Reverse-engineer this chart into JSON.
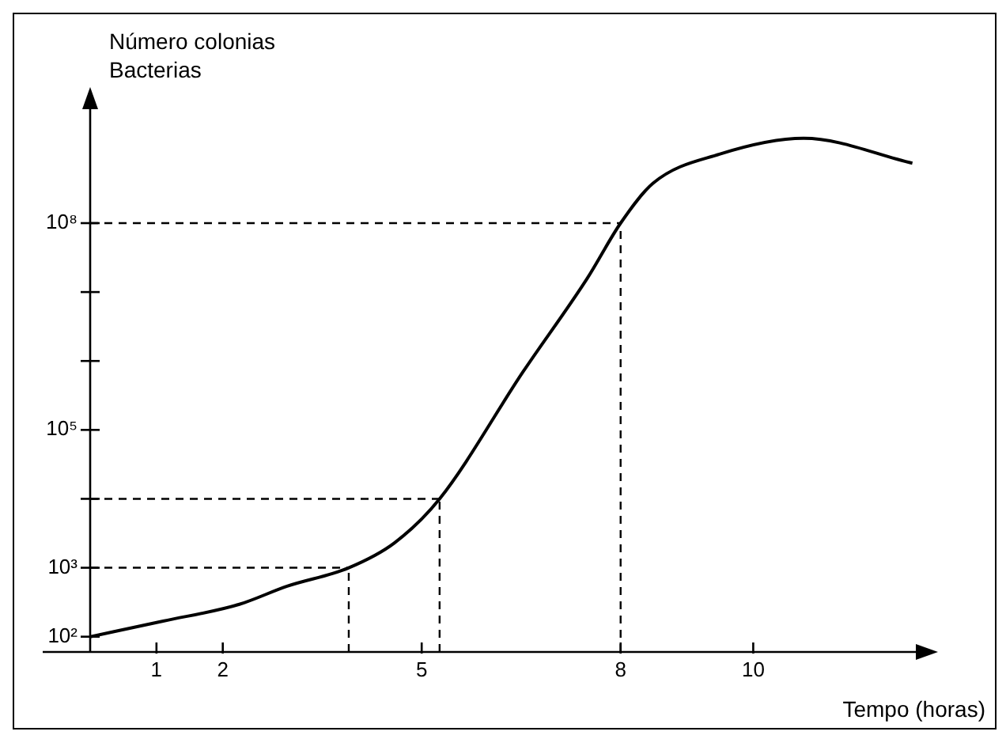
{
  "chart_data": {
    "type": "line",
    "xlabel": "Tempo (horas)",
    "ylabel": "Número colonias Bacterias",
    "log": "y",
    "x": [
      0,
      1.1,
      2.25,
      2.97,
      3.9,
      4.59,
      5.27,
      6.53,
      7.5,
      8,
      8.49,
      9.49,
      10.76,
      12.4
    ],
    "series": [
      {
        "color": "#000000",
        "values": [
          100,
          168,
          295,
          540,
          1000,
          2300,
          10000,
          700000,
          16000000,
          100000000,
          380000000,
          1000000000,
          1700000000,
          740000000
        ]
      }
    ],
    "xlim": [
      0,
      12.5
    ],
    "xticks": [
      1,
      2,
      5,
      8,
      10
    ],
    "ylim": [
      60,
      5000000000
    ],
    "yticks": [
      {
        "value": 100,
        "label": "10²"
      },
      {
        "value": 1000,
        "label": "10³"
      },
      {
        "value": 10000,
        "label": null
      },
      {
        "value": 100000,
        "label": "10⁵"
      },
      {
        "value": 1000000,
        "label": null
      },
      {
        "value": 10000000,
        "label": null
      },
      {
        "value": 100000000,
        "label": "10⁸"
      }
    ],
    "grid": false,
    "legend": false,
    "marker": "none",
    "line_style": "solid",
    "ref_lines": [
      {
        "axis": "y",
        "value": 1000,
        "color": "#000000",
        "line_style": "dashed"
      },
      {
        "axis": "y",
        "value": 10000,
        "color": "#000000",
        "line_style": "dashed"
      },
      {
        "axis": "y",
        "value": 100000000,
        "color": "#000000",
        "line_style": "dashed"
      },
      {
        "axis": "x",
        "value": 3.9,
        "color": "#000000",
        "line_style": "dashed"
      },
      {
        "axis": "x",
        "value": 5.27,
        "color": "#000000",
        "line_style": "dashed"
      },
      {
        "axis": "x",
        "value": 8,
        "color": "#000000",
        "line_style": "dashed"
      }
    ]
  }
}
